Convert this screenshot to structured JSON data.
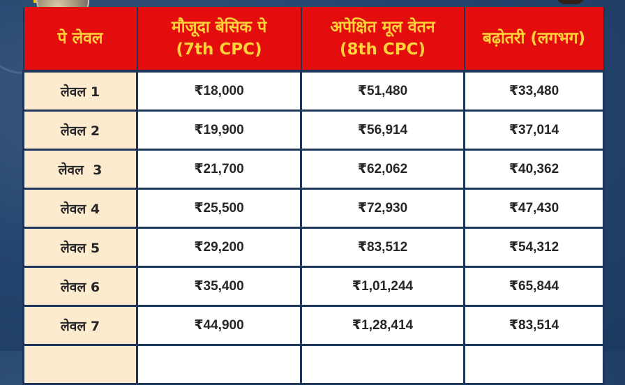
{
  "table": {
    "headers": [
      {
        "line1": "पे लेवल",
        "line2": ""
      },
      {
        "line1": "मौजूदा बेसिक पे",
        "line2": "(7th CPC)"
      },
      {
        "line1": "अपेक्षित मूल वेतन",
        "line2": "(8th CPC)"
      },
      {
        "line1": "बढ़ोतरी (लगभग)",
        "line2": ""
      }
    ],
    "rows": [
      {
        "level": "लेवल 1",
        "current": "₹18,000",
        "expected": "₹51,480",
        "increase": "₹33,480"
      },
      {
        "level": "लेवल 2",
        "current": "₹19,900",
        "expected": "₹56,914",
        "increase": "₹37,014"
      },
      {
        "level": "लेवल  3",
        "current": "₹21,700",
        "expected": "₹62,062",
        "increase": "₹40,362"
      },
      {
        "level": "लेवल 4",
        "current": "₹25,500",
        "expected": "₹72,930",
        "increase": "₹47,430"
      },
      {
        "level": "लेवल 5",
        "current": "₹29,200",
        "expected": "₹83,512",
        "increase": "₹54,312"
      },
      {
        "level": "लेवल 6",
        "current": "₹35,400",
        "expected": "₹1,01,244",
        "increase": "₹65,844"
      },
      {
        "level": "लेवल 7",
        "current": "₹44,900",
        "expected": "₹1,28,414",
        "increase": "₹83,514"
      },
      {
        "level": "",
        "current": "",
        "expected": "",
        "increase": ""
      }
    ]
  },
  "colors": {
    "header_bg": "#e30d0d",
    "header_text": "#ffd23a",
    "level_cell_bg": "#fdebd0",
    "border": "#1d3558",
    "background": "#24456e"
  }
}
